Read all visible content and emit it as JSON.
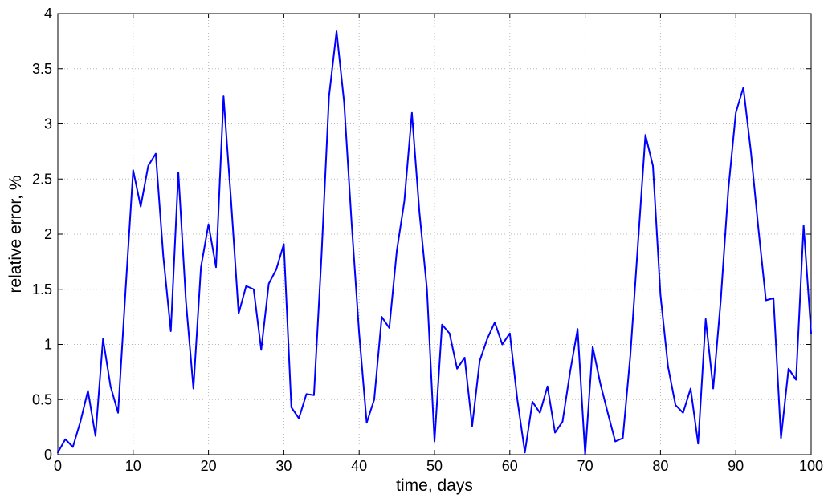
{
  "chart_data": {
    "type": "line",
    "title": "",
    "xlabel": "time, days",
    "ylabel": "relative error, %",
    "xlim": [
      0,
      100
    ],
    "ylim": [
      0,
      4
    ],
    "xticks": [
      0,
      10,
      20,
      30,
      40,
      50,
      60,
      70,
      80,
      90,
      100
    ],
    "yticks": [
      0,
      0.5,
      1,
      1.5,
      2,
      2.5,
      3,
      3.5,
      4
    ],
    "grid": true,
    "line_color": "#0000ff",
    "series": [
      {
        "x": [
          0,
          1,
          2,
          3,
          4,
          5,
          6,
          7,
          8,
          9,
          10,
          11,
          12,
          13,
          14,
          15,
          16,
          17,
          18,
          19,
          20,
          21,
          22,
          23,
          24,
          25,
          26,
          27,
          28,
          29,
          30,
          31,
          32,
          33,
          34,
          35,
          36,
          37,
          38,
          39,
          40,
          41,
          42,
          43,
          44,
          45,
          46,
          47,
          48,
          49,
          50,
          51,
          52,
          53,
          54,
          55,
          56,
          57,
          58,
          59,
          60,
          61,
          62,
          63,
          64,
          65,
          66,
          67,
          68,
          69,
          70,
          71,
          72,
          73,
          74,
          75,
          76,
          77,
          78,
          79,
          80,
          81,
          82,
          83,
          84,
          85,
          86,
          87,
          88,
          89,
          90,
          91,
          92,
          93,
          94,
          95,
          96,
          97,
          98,
          99,
          100
        ],
        "values": [
          0.02,
          0.14,
          0.07,
          0.3,
          0.58,
          0.17,
          1.05,
          0.62,
          0.38,
          1.5,
          2.58,
          2.25,
          2.62,
          2.73,
          1.8,
          1.12,
          2.56,
          1.4,
          0.6,
          1.7,
          2.09,
          1.7,
          3.25,
          2.3,
          1.28,
          1.53,
          1.5,
          0.95,
          1.55,
          1.68,
          1.91,
          0.43,
          0.33,
          0.55,
          0.54,
          1.8,
          3.25,
          3.84,
          3.2,
          2.1,
          1.1,
          0.29,
          0.5,
          1.25,
          1.15,
          1.85,
          2.3,
          3.1,
          2.2,
          1.5,
          0.12,
          1.18,
          1.1,
          0.78,
          0.88,
          0.26,
          0.85,
          1.05,
          1.2,
          1.0,
          1.1,
          0.5,
          0.02,
          0.48,
          0.38,
          0.62,
          0.2,
          0.3,
          0.75,
          1.14,
          0.0,
          0.98,
          0.65,
          0.38,
          0.12,
          0.15,
          0.9,
          1.9,
          2.9,
          2.62,
          1.45,
          0.8,
          0.45,
          0.38,
          0.6,
          0.1,
          1.23,
          0.6,
          1.4,
          2.4,
          3.1,
          3.33,
          2.75,
          2.05,
          1.4,
          1.42,
          0.15,
          0.78,
          0.68,
          2.08,
          1.1
        ]
      }
    ]
  }
}
